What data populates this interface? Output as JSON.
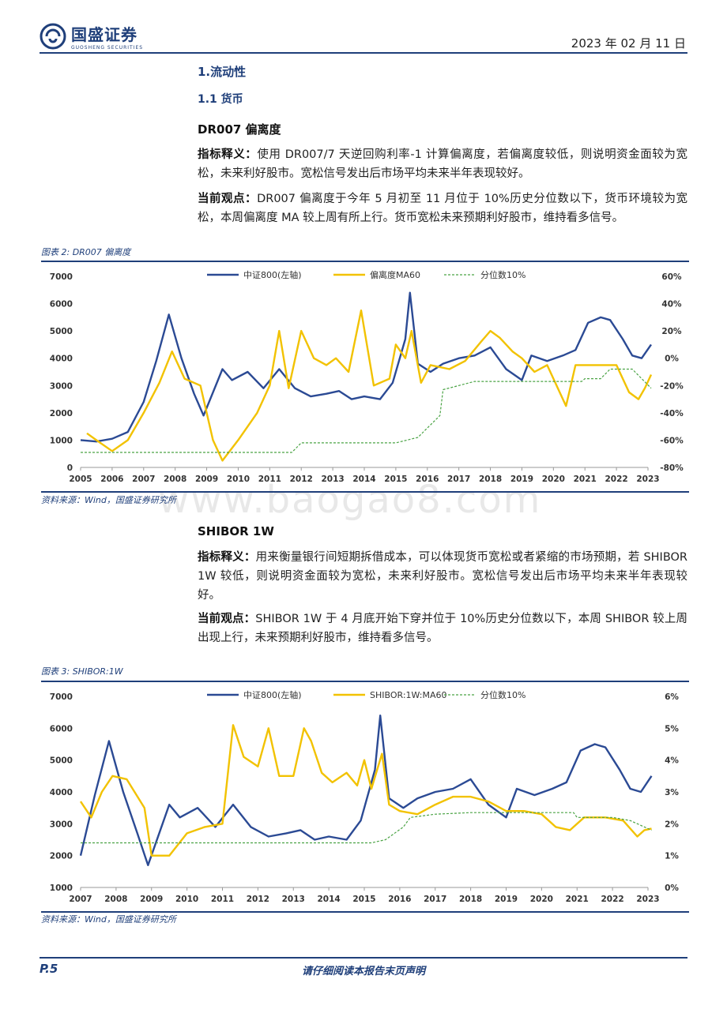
{
  "header": {
    "logo_name": "国盛证券",
    "logo_sub": "GUOSHENG SECURITIES",
    "date": "2023 年 02 月 11 日"
  },
  "section": {
    "h1": "1.流动性",
    "h2": "1.1 货币"
  },
  "block1": {
    "title": "DR007 偏离度",
    "def_label": "指标释义：",
    "def_text": "使用 DR007/7 天逆回购利率-1 计算偏离度，若偏离度较低，则说明资金面较为宽松，未来利好股市。宽松信号发出后市场平均未来半年表现较好。",
    "view_label": "当前观点：",
    "view_text": "DR007 偏离度于今年 5 月初至 11 月位于 10%历史分位数以下，货币环境较为宽松，本周偏离度 MA 较上周有所上行。货币宽松未来预期利好股市，维持看多信号。"
  },
  "figure2": {
    "title": "图表 2:  DR007 偏离度",
    "source": "资料来源：Wind，国盛证券研究所"
  },
  "block2": {
    "title": "SHIBOR 1W",
    "def_label": "指标释义：",
    "def_text": "用来衡量银行间短期拆借成本，可以体现货币宽松或者紧缩的市场预期，若 SHIBOR 1W 较低，则说明资金面较为宽松，未来利好股市。宽松信号发出后市场平均未来半年表现较好。",
    "view_label": "当前观点：",
    "view_text": "SHIBOR 1W 于 4 月底开始下穿并位于 10%历史分位数以下，本周 SHIBOR 较上周出现上行，未来预期利好股市，维持看多信号。"
  },
  "figure3": {
    "title": "图表 3:  SHIBOR:1W",
    "source": "资料来源：Wind，国盛证券研究所"
  },
  "footer": {
    "page": "P.5",
    "disclaimer": "请仔细阅读本报告末页声明"
  },
  "watermark": "www.baogao8.com",
  "colors": {
    "index": "#2b4a94",
    "ma": "#f2c200",
    "pct": "#4aa344",
    "brand": "#1f3f7a"
  },
  "chart_data": [
    {
      "type": "line",
      "legend": [
        "中证800(左轴)",
        "偏离度MA60",
        "分位数10%"
      ],
      "x_ticks": [
        "2005",
        "2006",
        "2007",
        "2008",
        "2009",
        "2010",
        "2011",
        "2012",
        "2013",
        "2014",
        "2015",
        "2016",
        "2017",
        "2018",
        "2019",
        "2020",
        "2021",
        "2022",
        "2023"
      ],
      "y_left_ticks": [
        "0",
        "1000",
        "2000",
        "3000",
        "4000",
        "5000",
        "6000",
        "7000"
      ],
      "y_right_ticks": [
        "-80%",
        "-60%",
        "-40%",
        "-20%",
        "0%",
        "20%",
        "40%",
        "60%"
      ],
      "ylim_left": [
        0,
        7000
      ],
      "ylim_right": [
        -80,
        60
      ],
      "series": [
        {
          "name": "中证800(左轴)",
          "axis": "left",
          "x": [
            2005,
            2005.5,
            2006,
            2006.5,
            2007,
            2007.4,
            2007.8,
            2008.2,
            2008.6,
            2008.9,
            2009.5,
            2009.8,
            2010.3,
            2010.8,
            2011.3,
            2011.8,
            2012.3,
            2012.8,
            2013.2,
            2013.6,
            2014.0,
            2014.5,
            2014.9,
            2015.3,
            2015.45,
            2015.7,
            2016.1,
            2016.5,
            2017.0,
            2017.5,
            2018.0,
            2018.5,
            2019.0,
            2019.3,
            2019.8,
            2020.3,
            2020.7,
            2021.1,
            2021.5,
            2021.8,
            2022.2,
            2022.5,
            2022.8,
            2023.1
          ],
          "values": [
            1000,
            950,
            1050,
            1300,
            2400,
            3900,
            5600,
            4000,
            2700,
            1900,
            3600,
            3200,
            3500,
            2900,
            3600,
            2900,
            2600,
            2700,
            2800,
            2500,
            2600,
            2500,
            3100,
            4700,
            6400,
            3800,
            3500,
            3800,
            4000,
            4100,
            4400,
            3600,
            3200,
            4100,
            3900,
            4100,
            4300,
            5300,
            5500,
            5400,
            4700,
            4100,
            4000,
            4500
          ]
        },
        {
          "name": "偏离度MA60",
          "axis": "right",
          "x": [
            2005.2,
            2005.5,
            2006,
            2006.5,
            2007,
            2007.5,
            2007.9,
            2008.3,
            2008.8,
            2009.2,
            2009.5,
            2010,
            2010.6,
            2011,
            2011.3,
            2011.6,
            2012,
            2012.4,
            2012.8,
            2013.1,
            2013.5,
            2013.9,
            2014.3,
            2014.8,
            2015,
            2015.3,
            2015.5,
            2015.8,
            2016.1,
            2016.7,
            2017.2,
            2017.7,
            2018,
            2018.3,
            2018.7,
            2019,
            2019.4,
            2019.8,
            2020.2,
            2020.4,
            2020.7,
            2021,
            2021.5,
            2022,
            2022.4,
            2022.7,
            2022.9,
            2023.1
          ],
          "values": [
            -55,
            -60,
            -68,
            -60,
            -40,
            -18,
            5,
            -15,
            -20,
            -60,
            -75,
            -60,
            -40,
            -20,
            20,
            -22,
            20,
            0,
            -5,
            0,
            -10,
            35,
            -20,
            -15,
            10,
            0,
            20,
            -18,
            -5,
            -8,
            -2,
            12,
            20,
            15,
            5,
            0,
            -10,
            -5,
            -25,
            -35,
            -5,
            -5,
            -5,
            -5,
            -25,
            -30,
            -22,
            -12
          ]
        },
        {
          "name": "分位数10%",
          "axis": "right",
          "x": [
            2005,
            2011.7,
            2012.0,
            2013,
            2015.0,
            2015.7,
            2016.4,
            2016.5,
            2017,
            2017.5,
            2018,
            2019,
            2020,
            2020.9,
            2021,
            2021.5,
            2021.8,
            2022.5,
            2023.1
          ],
          "values": [
            -69,
            -69,
            -62,
            -62,
            -62,
            -58,
            -42,
            -23,
            -20,
            -17,
            -17,
            -17,
            -17,
            -17,
            -15,
            -15,
            -8,
            -8,
            -22
          ]
        }
      ]
    },
    {
      "type": "line",
      "legend": [
        "中证800(左轴)",
        "SHIBOR:1W:MA60",
        "分位数10%"
      ],
      "x_ticks": [
        "2007",
        "2008",
        "2009",
        "2010",
        "2011",
        "2012",
        "2013",
        "2014",
        "2015",
        "2016",
        "2017",
        "2018",
        "2019",
        "2020",
        "2021",
        "2022",
        "2023"
      ],
      "y_left_ticks": [
        "1000",
        "2000",
        "3000",
        "4000",
        "5000",
        "6000",
        "7000"
      ],
      "y_right_ticks": [
        "0%",
        "1%",
        "2%",
        "3%",
        "4%",
        "5%",
        "6%"
      ],
      "ylim_left": [
        1000,
        7000
      ],
      "ylim_right": [
        0,
        6
      ],
      "series": [
        {
          "name": "中证800(左轴)",
          "axis": "left",
          "x": [
            2007,
            2007.4,
            2007.8,
            2008.2,
            2008.6,
            2008.9,
            2009.5,
            2009.8,
            2010.3,
            2010.8,
            2011.3,
            2011.8,
            2012.3,
            2012.8,
            2013.2,
            2013.6,
            2014.0,
            2014.5,
            2014.9,
            2015.3,
            2015.45,
            2015.7,
            2016.1,
            2016.5,
            2017.0,
            2017.5,
            2018.0,
            2018.5,
            2019.0,
            2019.3,
            2019.8,
            2020.3,
            2020.7,
            2021.1,
            2021.5,
            2021.8,
            2022.2,
            2022.5,
            2022.8,
            2023.1
          ],
          "values": [
            2000,
            3900,
            5600,
            4000,
            2700,
            1700,
            3600,
            3200,
            3500,
            2900,
            3600,
            2900,
            2600,
            2700,
            2800,
            2500,
            2600,
            2500,
            3100,
            4700,
            6400,
            3800,
            3500,
            3800,
            4000,
            4100,
            4400,
            3600,
            3200,
            4100,
            3900,
            4100,
            4300,
            5300,
            5500,
            5400,
            4700,
            4100,
            4000,
            4500
          ]
        },
        {
          "name": "SHIBOR:1W:MA60",
          "axis": "right",
          "x": [
            2007,
            2007.3,
            2007.6,
            2007.9,
            2008.3,
            2008.8,
            2009.0,
            2009.5,
            2010,
            2010.5,
            2011,
            2011.3,
            2011.6,
            2012,
            2012.3,
            2012.6,
            2013,
            2013.3,
            2013.5,
            2013.8,
            2014.1,
            2014.5,
            2014.8,
            2015,
            2015.2,
            2015.5,
            2015.7,
            2016,
            2016.5,
            2017,
            2017.5,
            2018,
            2018.5,
            2019,
            2019.5,
            2020,
            2020.4,
            2020.8,
            2021.2,
            2021.8,
            2022.3,
            2022.7,
            2022.9,
            2023.1
          ],
          "values": [
            2.7,
            2.2,
            3.0,
            3.5,
            3.4,
            2.5,
            1.0,
            1.0,
            1.7,
            1.9,
            2.0,
            5.1,
            4.1,
            3.8,
            5.0,
            3.5,
            3.5,
            5.0,
            4.6,
            3.6,
            3.3,
            3.6,
            3.2,
            4.0,
            3.1,
            4.2,
            2.6,
            2.4,
            2.3,
            2.6,
            2.85,
            2.85,
            2.7,
            2.4,
            2.4,
            2.3,
            1.9,
            1.8,
            2.2,
            2.2,
            2.1,
            1.6,
            1.8,
            1.85
          ]
        },
        {
          "name": "分位数10%",
          "axis": "right",
          "x": [
            2007,
            2014.5,
            2015.2,
            2015.6,
            2016.1,
            2016.3,
            2017,
            2018,
            2019,
            2020,
            2020.9,
            2021,
            2022,
            2022.5,
            2022.9,
            2023.1
          ],
          "values": [
            1.4,
            1.4,
            1.4,
            1.5,
            1.9,
            2.2,
            2.3,
            2.35,
            2.35,
            2.35,
            2.35,
            2.2,
            2.2,
            2.1,
            1.9,
            1.8
          ]
        }
      ]
    }
  ]
}
